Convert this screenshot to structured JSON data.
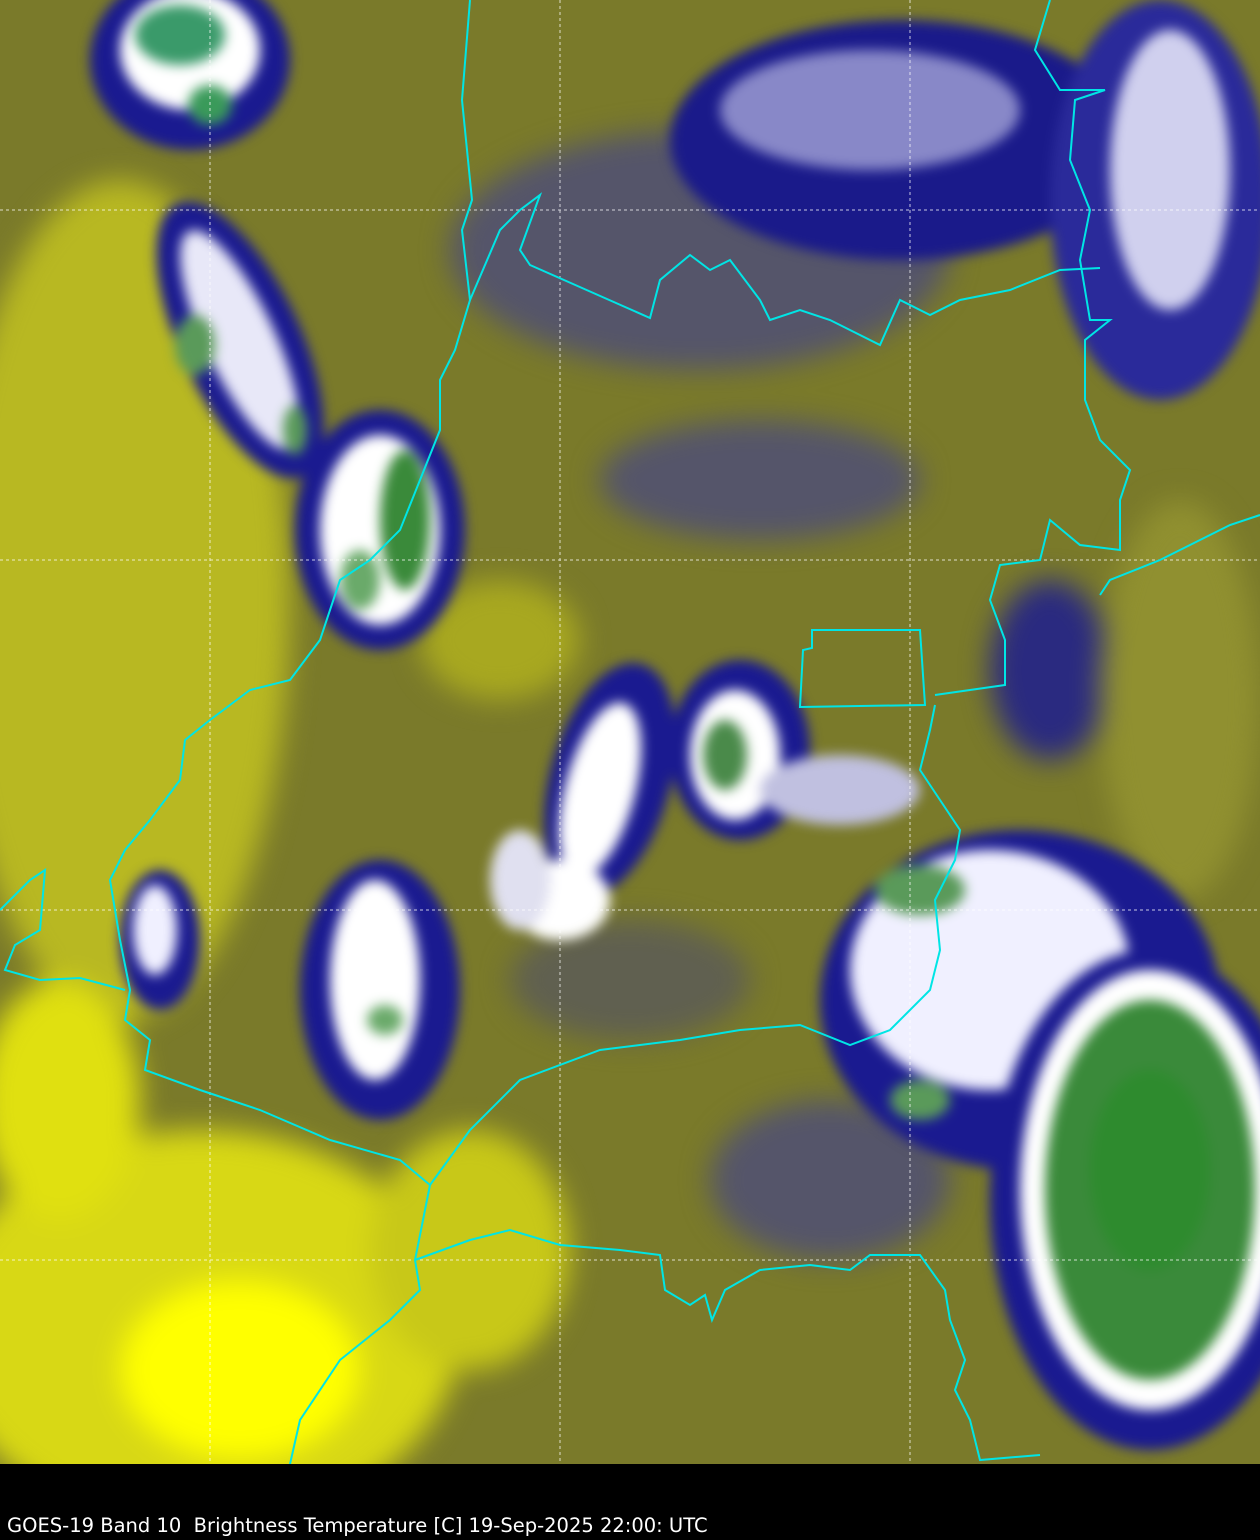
{
  "caption": {
    "satellite": "GOES-19",
    "band": "Band 10",
    "quantity": "Brightness Temperature [C]",
    "datetime": "19-Sep-2025 22:00: UTC",
    "full_text": "GOES-19 Band 10  Brightness Temperature [C] 19-Sep-2025 22:00: UTC"
  },
  "colors": {
    "warm_surface": "#ffff00",
    "mid_surface": "#7a7a2a",
    "cool_gray": "#55556a",
    "cold_cloud": "#000080",
    "very_cold_cloud": "#ffffff",
    "coldest_tops": "#2e8b2e",
    "boundaries": "#00e5e5",
    "gridlines": "#ffffff",
    "caption_bar": "#000000",
    "caption_text": "#ffffff"
  },
  "map": {
    "layers": [
      "satellite-imagery",
      "political-boundaries",
      "lat-lon-graticule"
    ]
  }
}
